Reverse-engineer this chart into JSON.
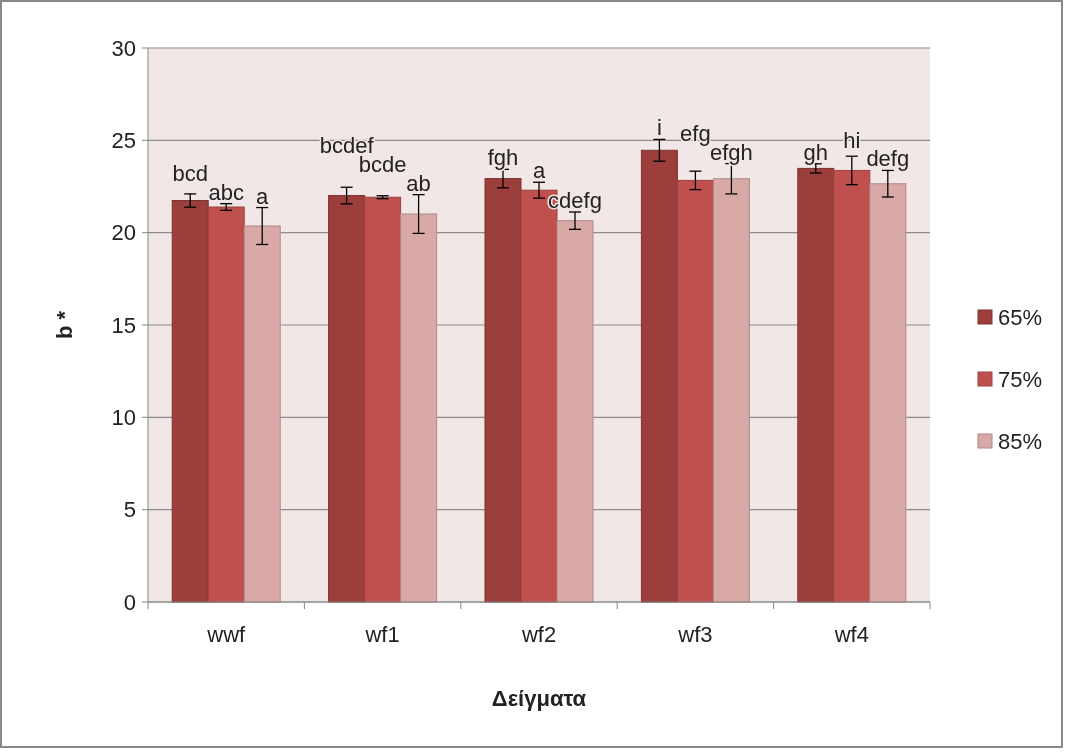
{
  "chart_data": {
    "type": "bar",
    "xlabel": "Δείγματα",
    "ylabel": "b *",
    "categories": [
      "wwf",
      "wf1",
      "wf2",
      "wf3",
      "wf4"
    ],
    "series": [
      {
        "name": "65%",
        "color": "#9b3e3c",
        "values": [
          21.74,
          22.01,
          22.93,
          24.46,
          23.48
        ],
        "errors": [
          0.36,
          0.45,
          0.5,
          0.59,
          0.25
        ]
      },
      {
        "name": "75%",
        "color": "#c0504d",
        "values": [
          21.39,
          21.92,
          22.3,
          22.83,
          23.37
        ],
        "errors": [
          0.18,
          0.08,
          0.43,
          0.5,
          0.77
        ]
      },
      {
        "name": "85%",
        "color": "#d9a9a8",
        "values": [
          20.36,
          21.01,
          20.65,
          22.92,
          22.65
        ],
        "errors": [
          1.0,
          1.05,
          0.47,
          0.82,
          0.72
        ]
      }
    ],
    "ylim": [
      0,
      30
    ],
    "yticks": [
      0,
      5,
      10,
      15,
      20,
      25,
      30
    ],
    "grid": "y",
    "legend": "right",
    "annotations": [
      "bcd",
      "abc",
      "a",
      "bcdef",
      "bcde",
      "ab",
      "fgh",
      "a",
      "cdefg",
      "i",
      "efg",
      "efgh",
      "gh",
      "hi",
      "defg"
    ]
  }
}
